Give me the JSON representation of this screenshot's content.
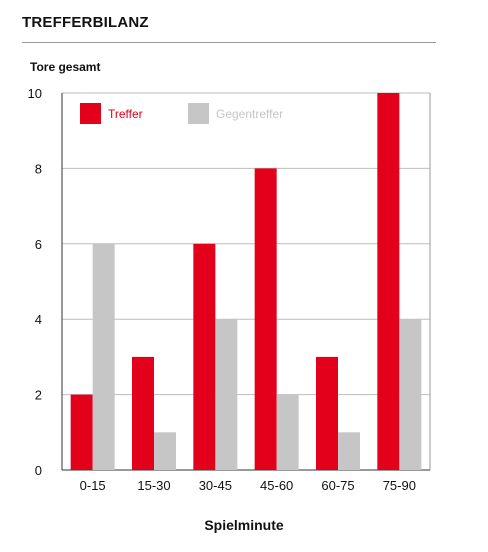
{
  "chart_data": {
    "type": "bar",
    "title": "TREFFERBILANZ",
    "ylabel": "Tore gesamt",
    "xlabel": "Spielminute",
    "categories": [
      "0-15",
      "15-30",
      "30-45",
      "45-60",
      "60-75",
      "75-90"
    ],
    "series": [
      {
        "name": "Treffer",
        "color": "#e2001a",
        "values": [
          2,
          3,
          6,
          8,
          3,
          10
        ]
      },
      {
        "name": "Gegentreffer",
        "color": "#c6c6c6",
        "values": [
          6,
          1,
          4,
          2,
          1,
          4
        ]
      }
    ],
    "ylim": [
      0,
      10
    ],
    "yticks": [
      0,
      2,
      4,
      6,
      8,
      10
    ],
    "grid": true,
    "legend": "top-left"
  }
}
